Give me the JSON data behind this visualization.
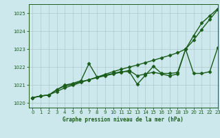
{
  "title": "Graphe pression niveau de la mer (hPa)",
  "background_color": "#cce8ec",
  "plot_bg_color": "#cce8ec",
  "grid_color": "#b0c8cc",
  "line_color": "#1a5c1a",
  "xlim": [
    -0.5,
    23
  ],
  "ylim": [
    1019.75,
    1025.5
  ],
  "yticks": [
    1020,
    1021,
    1022,
    1023,
    1024,
    1025
  ],
  "xticks": [
    0,
    1,
    2,
    3,
    4,
    5,
    6,
    7,
    8,
    9,
    10,
    11,
    12,
    13,
    14,
    15,
    16,
    17,
    18,
    19,
    20,
    21,
    22,
    23
  ],
  "hours": [
    0,
    1,
    2,
    3,
    4,
    5,
    6,
    7,
    8,
    9,
    10,
    11,
    12,
    13,
    14,
    15,
    16,
    17,
    18,
    19,
    20,
    21,
    22,
    23
  ],
  "line1": [
    1020.3,
    1020.4,
    1020.45,
    1020.65,
    1020.85,
    1021.0,
    1021.15,
    1021.3,
    1021.45,
    1021.6,
    1021.75,
    1021.88,
    1022.0,
    1022.12,
    1022.25,
    1022.38,
    1022.52,
    1022.65,
    1022.8,
    1023.0,
    1023.5,
    1024.1,
    1024.65,
    1025.2
  ],
  "line2": [
    1020.3,
    1020.4,
    1020.45,
    1020.75,
    1021.0,
    1021.1,
    1021.25,
    1022.2,
    1021.45,
    1021.55,
    1021.65,
    1021.75,
    1021.75,
    1021.05,
    1021.55,
    1022.05,
    1021.65,
    1021.65,
    1021.7,
    1023.0,
    1021.65,
    1021.65,
    1021.75,
    1023.1
  ],
  "line3": [
    1020.3,
    1020.4,
    1020.45,
    1020.75,
    1020.95,
    1021.05,
    1021.2,
    1021.3,
    1021.42,
    1021.52,
    1021.62,
    1021.72,
    1021.82,
    1021.52,
    1021.62,
    1021.72,
    1021.62,
    1021.52,
    1021.62,
    1023.0,
    1023.75,
    1024.45,
    1024.85,
    1025.25
  ],
  "marker": "D",
  "markersize": 2.5,
  "linewidth": 1.0
}
